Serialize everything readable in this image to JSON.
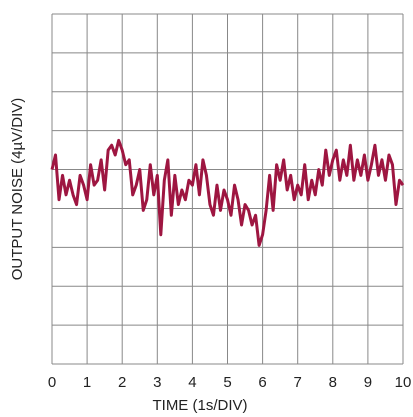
{
  "chart_data": {
    "type": "line",
    "xlabel": "TIME (1s/DIV)",
    "ylabel": "OUTPUT NOISE (4µV/DIV)",
    "x": [
      0,
      0.1,
      0.2,
      0.3,
      0.4,
      0.5,
      0.6,
      0.7,
      0.8,
      0.9,
      1,
      1.1,
      1.2,
      1.3,
      1.4,
      1.5,
      1.6,
      1.7,
      1.8,
      1.9,
      2,
      2.1,
      2.2,
      2.3,
      2.4,
      2.5,
      2.6,
      2.7,
      2.8,
      2.9,
      3,
      3.1,
      3.2,
      3.3,
      3.4,
      3.5,
      3.6,
      3.7,
      3.8,
      3.9,
      4,
      4.1,
      4.2,
      4.3,
      4.4,
      4.5,
      4.6,
      4.7,
      4.8,
      4.9,
      5,
      5.1,
      5.2,
      5.3,
      5.4,
      5.5,
      5.6,
      5.7,
      5.8,
      5.9,
      6,
      6.1,
      6.2,
      6.3,
      6.4,
      6.5,
      6.6,
      6.7,
      6.8,
      6.9,
      7,
      7.1,
      7.2,
      7.3,
      7.4,
      7.5,
      7.6,
      7.7,
      7.8,
      7.9,
      8,
      8.1,
      8.2,
      8.3,
      8.4,
      8.5,
      8.6,
      8.7,
      8.8,
      8.9,
      9,
      9.1,
      9.2,
      9.3,
      9.4,
      9.5,
      9.6,
      9.7,
      9.8,
      9.9,
      10
    ],
    "series": [
      {
        "name": "Output Noise",
        "color": "#9e1641",
        "values": [
          2.0,
          3.5,
          -1.1,
          1.4,
          -0.6,
          0.9,
          -0.6,
          -1.6,
          1.4,
          0.4,
          -1.1,
          2.5,
          0.4,
          0.9,
          3.0,
          -0.1,
          4.0,
          4.5,
          3.5,
          5.0,
          4.0,
          2.5,
          3.0,
          -0.6,
          0.4,
          2.0,
          -2.2,
          -1.1,
          2.5,
          -0.6,
          1.4,
          -4.7,
          0.9,
          3.0,
          -2.7,
          1.4,
          -1.6,
          -0.1,
          -1.1,
          0.9,
          0.4,
          2.5,
          -0.6,
          3.0,
          1.4,
          -1.6,
          -2.7,
          0.4,
          -2.2,
          -0.1,
          -1.1,
          -2.7,
          0.4,
          -1.1,
          -3.7,
          -1.6,
          -2.2,
          -3.7,
          -2.7,
          -5.8,
          -4.7,
          -2.2,
          1.4,
          -2.2,
          2.5,
          0.9,
          3.0,
          -0.1,
          1.4,
          -1.1,
          0.4,
          -0.6,
          2.5,
          -1.1,
          0.9,
          -0.6,
          2.0,
          0.4,
          4.0,
          1.4,
          3.0,
          4.0,
          0.9,
          3.0,
          1.4,
          4.5,
          0.9,
          3.0,
          1.4,
          3.5,
          0.9,
          2.5,
          4.5,
          1.4,
          3.0,
          0.9,
          3.5,
          2.5,
          -1.6,
          0.9,
          0.4
        ]
      }
    ],
    "xlim": [
      0,
      10
    ],
    "xticks": [
      0,
      1,
      2,
      3,
      4,
      5,
      6,
      7,
      8,
      9,
      10
    ],
    "ylim": [
      -18,
      18
    ],
    "yticks": [
      -18,
      -14,
      -10,
      -6,
      -2,
      2,
      6,
      10,
      14,
      18
    ],
    "grid": true
  }
}
